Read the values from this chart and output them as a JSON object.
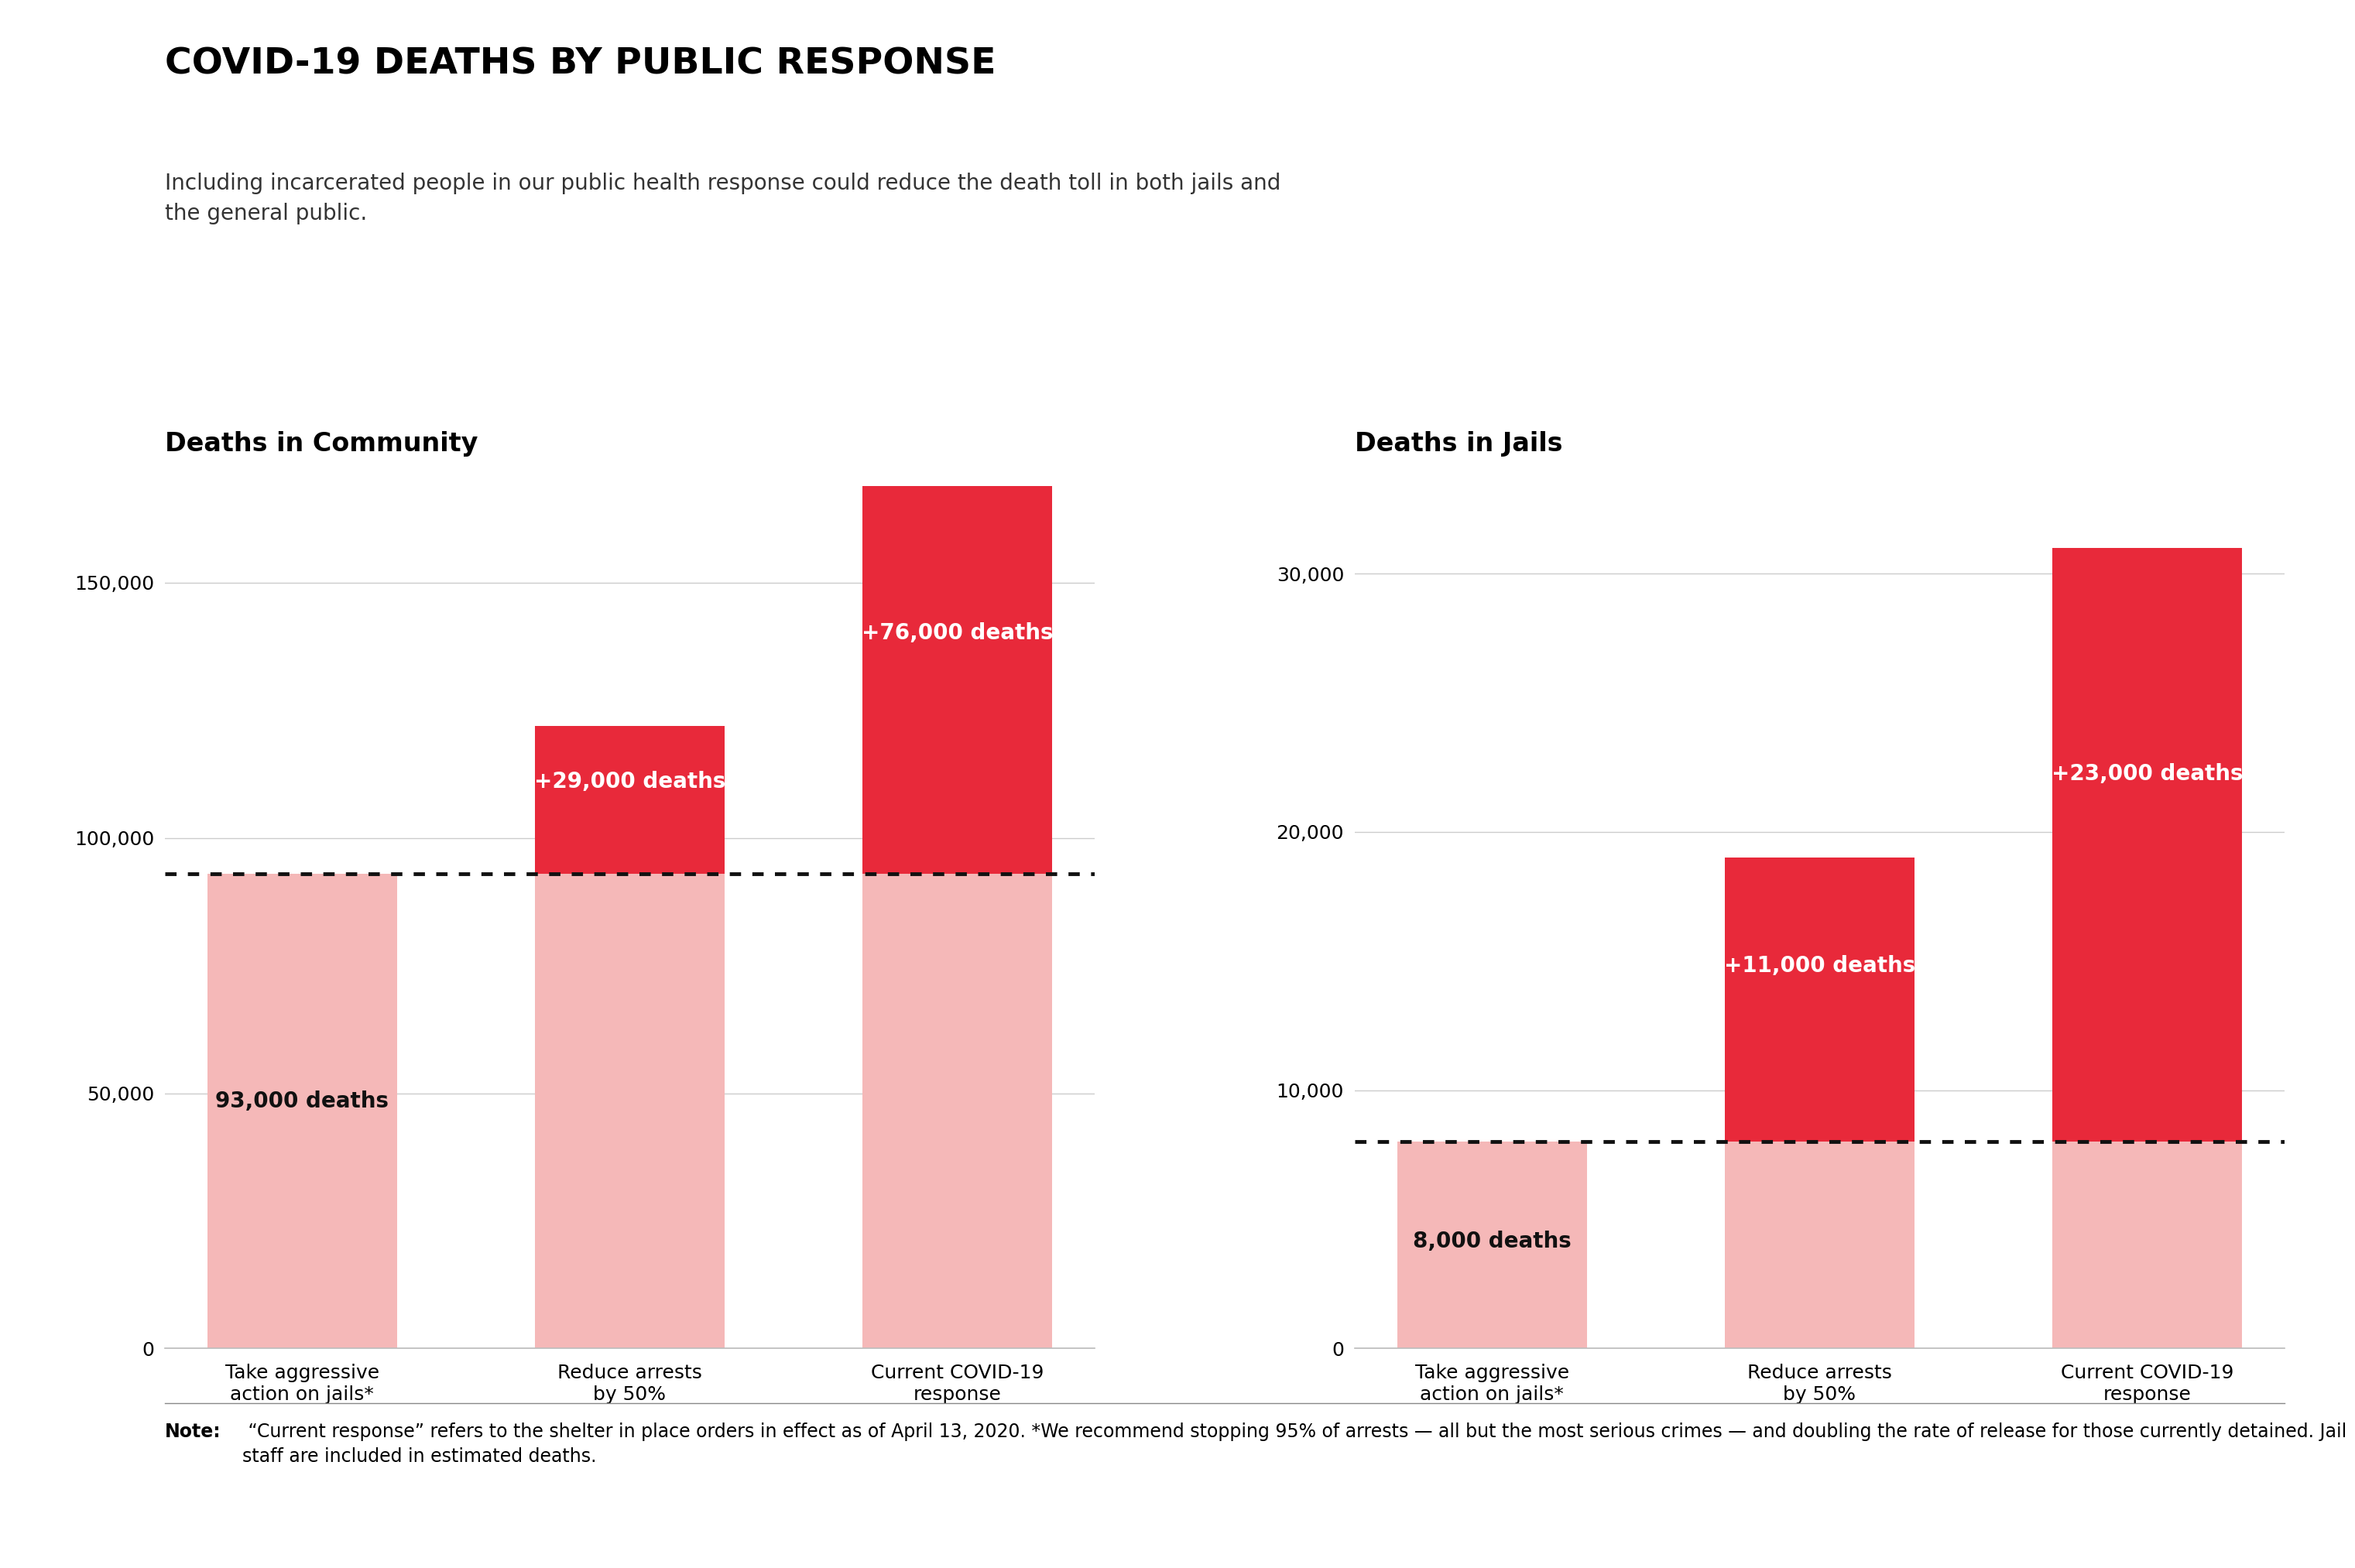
{
  "title": "COVID-19 DEATHS BY PUBLIC RESPONSE",
  "subtitle": "Including incarcerated people in our public health response could reduce the death toll in both jails and\nthe general public.",
  "note_bold": "Note:",
  "note_rest": " “Current response” refers to the shelter in place orders in effect as of April 13, 2020. *We recommend stopping 95% of arrests — all but the most serious crimes — and doubling the rate of release for those currently detained. Jail staff are included in estimated deaths.",
  "community_title": "Deaths in Community",
  "jails_title": "Deaths in Jails",
  "categories": [
    "Take aggressive\naction on jails*",
    "Reduce arrests\nby 50%",
    "Current COVID-19\nresponse"
  ],
  "community_base": [
    93000,
    93000,
    93000
  ],
  "community_extra": [
    0,
    29000,
    76000
  ],
  "community_labels": [
    "93,000 deaths",
    "+29,000 deaths",
    "+76,000 deaths"
  ],
  "community_ref": 93000,
  "community_ylim": [
    0,
    172000
  ],
  "community_yticks": [
    0,
    50000,
    100000,
    150000
  ],
  "jails_base": [
    8000,
    8000,
    8000
  ],
  "jails_extra": [
    0,
    11000,
    23000
  ],
  "jails_labels": [
    "8,000 deaths",
    "+11,000 deaths",
    "+23,000 deaths"
  ],
  "jails_ref": 8000,
  "jails_ylim": [
    0,
    34000
  ],
  "jails_yticks": [
    0,
    10000,
    20000,
    30000
  ],
  "color_base": "#f5b8b8",
  "color_extra": "#e8293a",
  "color_ref_line": "#111111",
  "bg_color": "#ffffff",
  "label_color_base": "#111111",
  "label_color_extra": "#ffffff",
  "title_fontsize": 34,
  "subtitle_fontsize": 20,
  "note_fontsize": 17,
  "axis_title_fontsize": 24,
  "tick_fontsize": 18,
  "bar_label_fontsize": 20,
  "cat_label_fontsize": 18
}
